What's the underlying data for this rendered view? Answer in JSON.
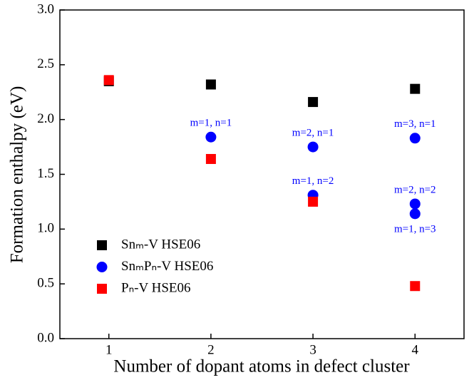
{
  "chart_data": {
    "type": "scatter",
    "xlabel": "Number of dopant atoms in defect cluster",
    "ylabel": "Formation enthalpy (eV)",
    "xlim": [
      0.52,
      4.48
    ],
    "xticks": [
      1,
      2,
      3,
      4
    ],
    "ylim": [
      0,
      3
    ],
    "yticks": [
      {
        "value": 0,
        "label": "0.0"
      },
      0.5,
      {
        "value": 1,
        "label": "1.0"
      },
      1.5,
      {
        "value": 2,
        "label": "2.0"
      },
      2.5,
      {
        "value": 3,
        "label": "3.0"
      }
    ],
    "legend": "lower left",
    "series": [
      {
        "name": "Snₘ-V HSE06",
        "color": "#000000",
        "marker": "square",
        "x": [
          1,
          2,
          3,
          4
        ],
        "values": [
          2.35,
          2.32,
          2.16,
          2.28
        ]
      },
      {
        "name": "SnₘPₙ-V HSE06",
        "color": "#0000ff",
        "marker": "circle",
        "x": [
          2,
          3,
          3,
          4,
          4,
          4
        ],
        "values": [
          1.84,
          1.75,
          1.31,
          1.83,
          1.23,
          1.14
        ],
        "point_labels": [
          "m=1, n=1",
          "m=2, n=1",
          "m=1, n=2",
          "m=3, n=1",
          "m=2, n=2",
          "m=1, n=3"
        ]
      },
      {
        "name": "Pₙ-V HSE06",
        "color": "#ff0000",
        "marker": "square",
        "x": [
          1,
          2,
          3,
          4
        ],
        "values": [
          2.36,
          1.64,
          1.25,
          0.48
        ]
      }
    ]
  }
}
